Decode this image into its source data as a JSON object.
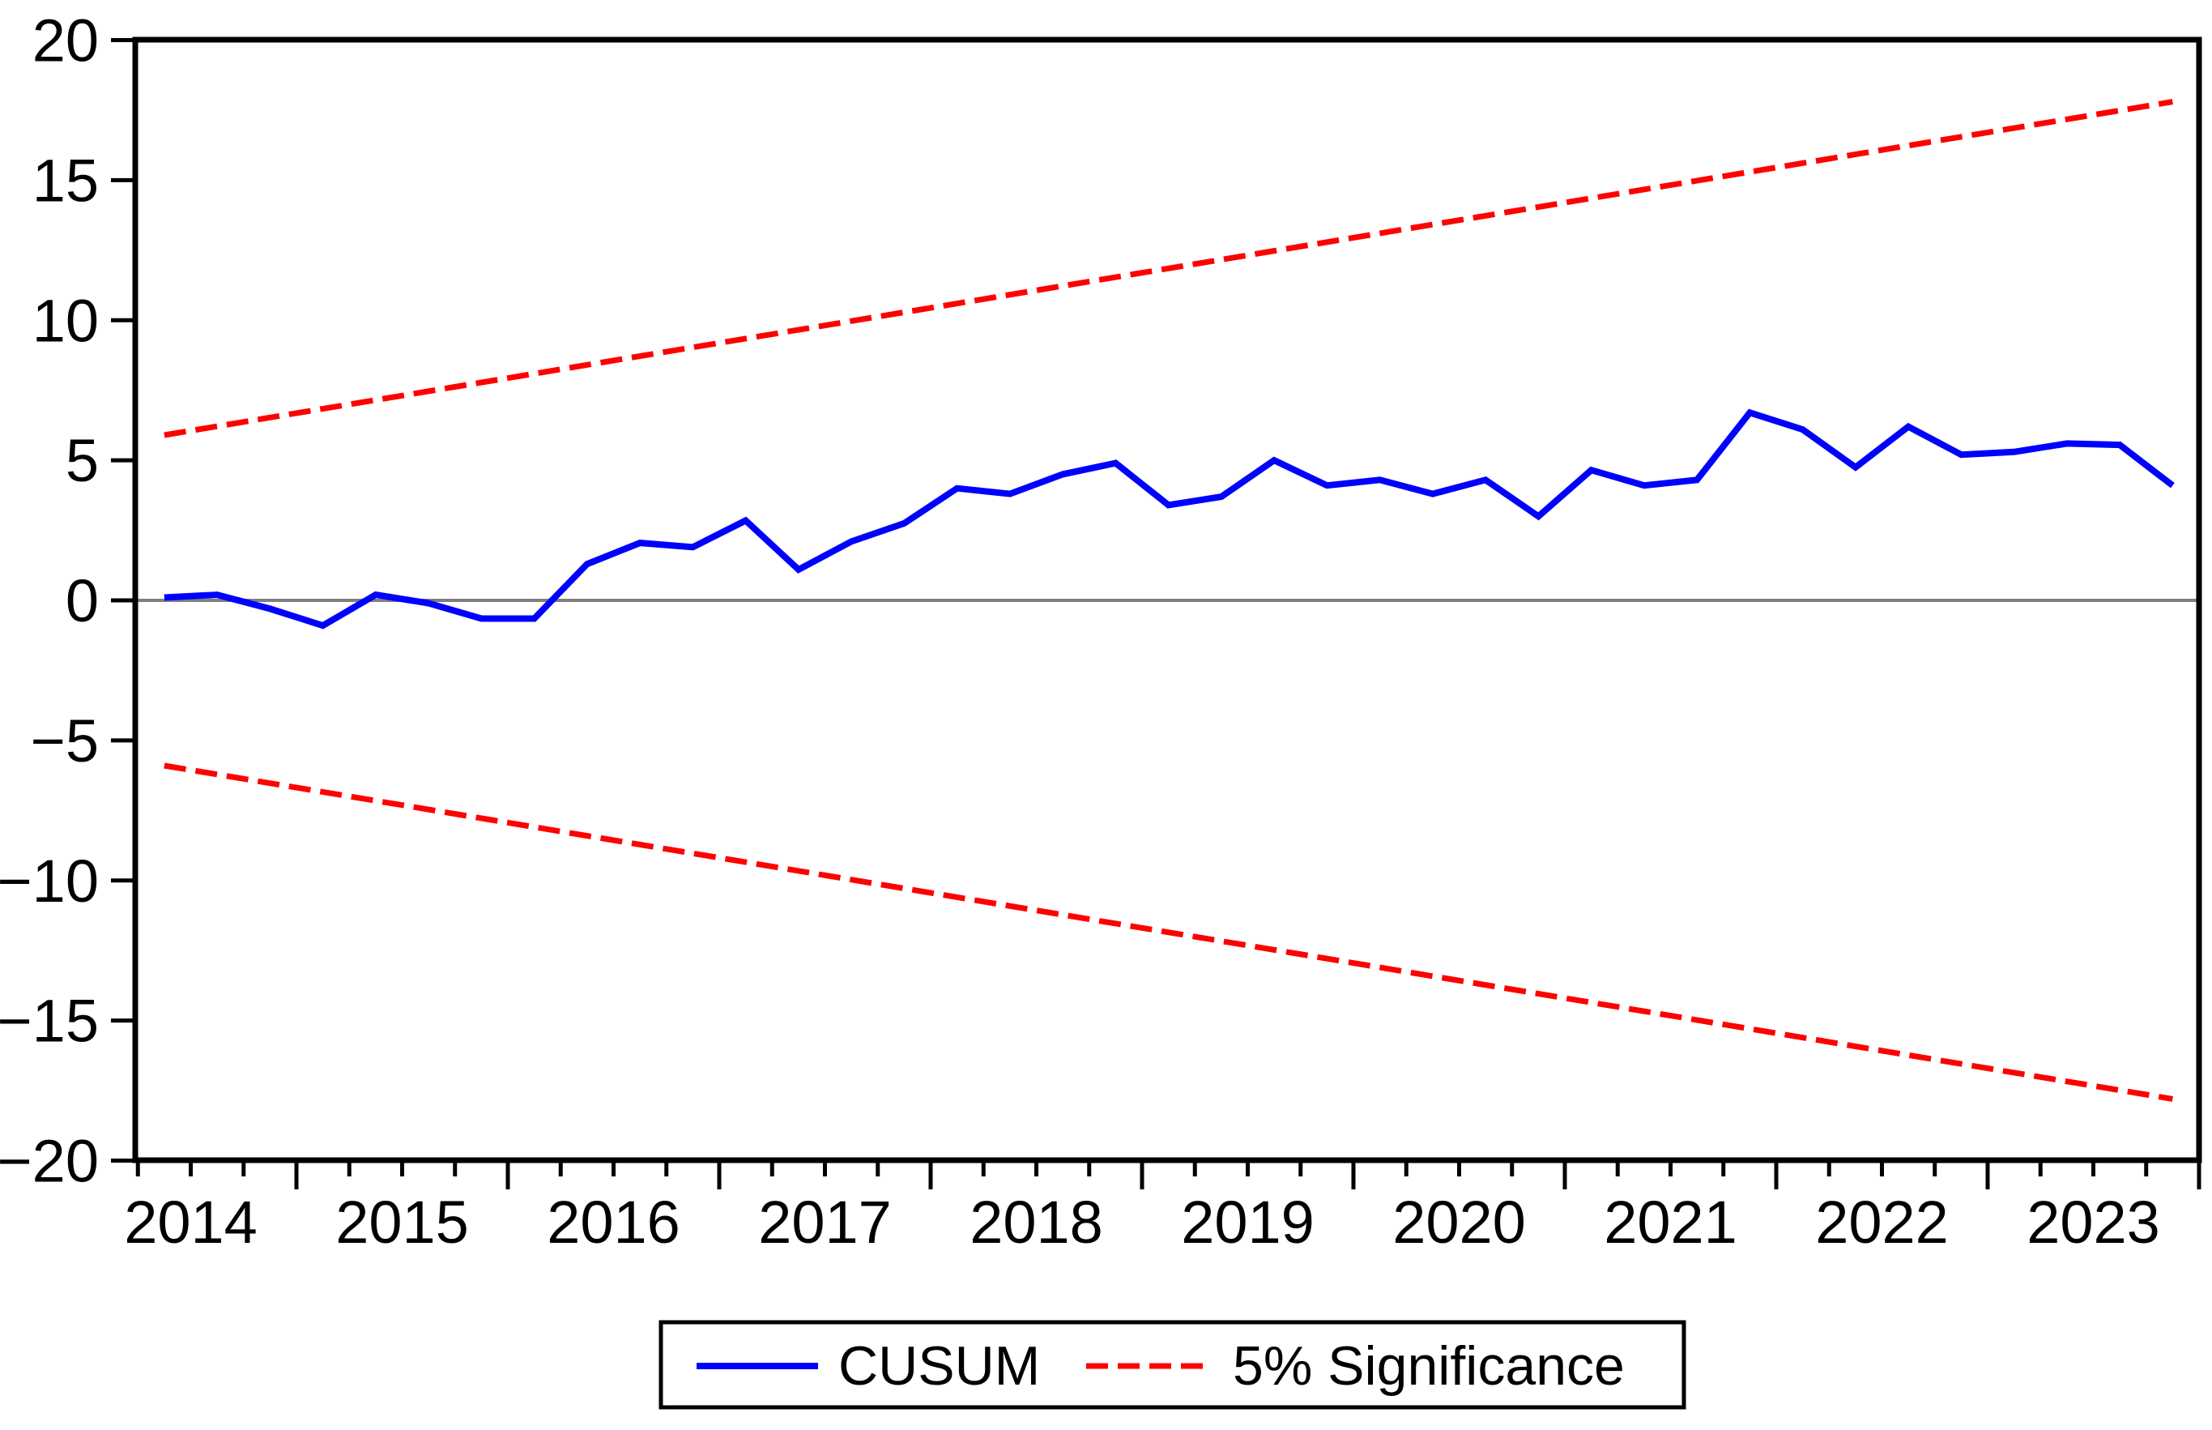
{
  "figure": {
    "background": "#ffffff",
    "border_color": "#000000",
    "zero_line_color": "#808080"
  },
  "chart_data": {
    "type": "line",
    "title": "",
    "grid": false,
    "x_axis": {
      "tick_labels": [
        "2014",
        "2015",
        "2016",
        "2017",
        "2018",
        "2019",
        "2020",
        "2021",
        "2022",
        "2023"
      ],
      "range_years": [
        2014,
        2024
      ],
      "minor_tick_unit": "quarter"
    },
    "y_axis": {
      "ticks": [
        20,
        15,
        10,
        5,
        0,
        -5,
        -10,
        -15,
        -20
      ],
      "range": [
        -20,
        20
      ]
    },
    "zero_line": 0,
    "categories": [
      "2014Q2",
      "2014Q3",
      "2014Q4",
      "2015Q1",
      "2015Q2",
      "2015Q3",
      "2015Q4",
      "2016Q1",
      "2016Q2",
      "2016Q3",
      "2016Q4",
      "2017Q1",
      "2017Q2",
      "2017Q3",
      "2017Q4",
      "2018Q1",
      "2018Q2",
      "2018Q3",
      "2018Q4",
      "2019Q1",
      "2019Q2",
      "2019Q3",
      "2019Q4",
      "2020Q1",
      "2020Q2",
      "2020Q3",
      "2020Q4",
      "2021Q1",
      "2021Q2",
      "2021Q3",
      "2021Q4",
      "2022Q1",
      "2022Q2",
      "2022Q3",
      "2022Q4",
      "2023Q1",
      "2023Q2",
      "2023Q3",
      "2023Q4"
    ],
    "series": [
      {
        "name": "CUSUM",
        "color": "#0000ff",
        "line_style": "solid",
        "values": [
          0.1,
          0.2,
          -0.3,
          -0.9,
          0.2,
          -0.1,
          -0.65,
          -0.65,
          1.3,
          2.05,
          1.9,
          2.85,
          1.1,
          2.1,
          2.75,
          4.0,
          3.8,
          4.5,
          4.9,
          3.4,
          3.7,
          5.0,
          4.1,
          4.3,
          3.8,
          4.3,
          3.0,
          4.65,
          4.1,
          4.3,
          6.7,
          6.1,
          4.75,
          6.2,
          5.2,
          5.3,
          5.6,
          5.55,
          4.1
        ]
      },
      {
        "name": "5% Significance upper bound",
        "color": "#ff0000",
        "line_style": "dashed",
        "endpoints_x": [
          "2014Q2",
          "2023Q4"
        ],
        "endpoints_values": [
          5.9,
          17.8
        ]
      },
      {
        "name": "5% Significance lower bound",
        "color": "#ff0000",
        "line_style": "dashed",
        "endpoints_x": [
          "2014Q2",
          "2023Q4"
        ],
        "endpoints_values": [
          -5.9,
          -17.8
        ]
      }
    ],
    "legend": {
      "position": "bottom-center",
      "entries": [
        {
          "label": "CUSUM",
          "color": "#0000ff",
          "line_style": "solid"
        },
        {
          "label": "5% Significance",
          "color": "#ff0000",
          "line_style": "dashed"
        }
      ]
    }
  }
}
